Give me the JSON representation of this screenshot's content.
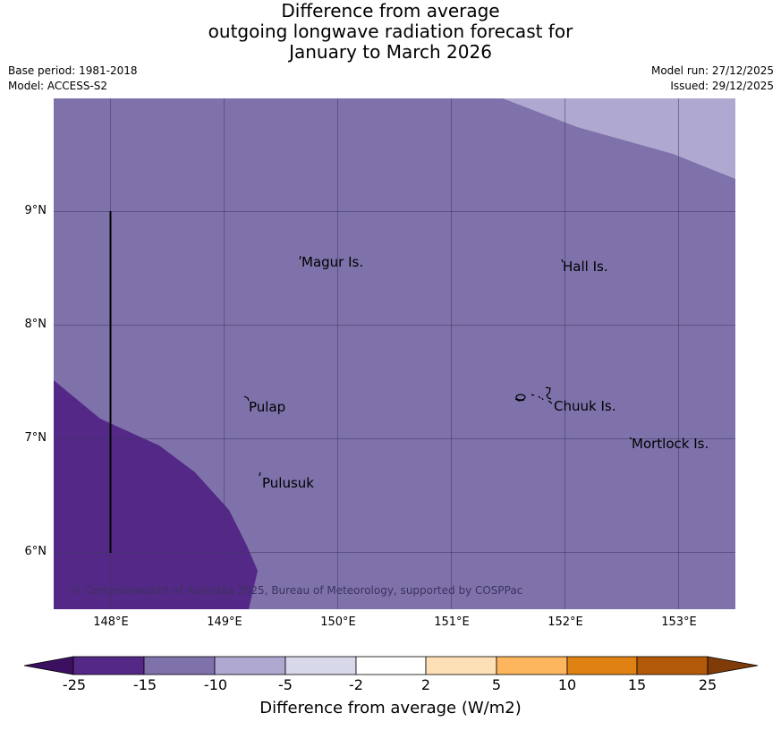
{
  "title": {
    "line1": "Difference from average",
    "line2": "outgoing longwave radiation forecast for",
    "line3": "January to March 2026"
  },
  "meta": {
    "base_period": "Base period: 1981-2018",
    "model": "Model: ACCESS-S2",
    "model_run": "Model run: 27/12/2025",
    "issued": "Issued: 29/12/2025"
  },
  "map": {
    "lon_range": [
      147.5,
      153.5
    ],
    "lat_range": [
      5.5,
      10.0
    ],
    "lat_labels": [
      "9°N",
      "8°N",
      "7°N",
      "6°N"
    ],
    "lon_labels": [
      "148°E",
      "149°E",
      "150°E",
      "151°E",
      "152°E",
      "153°E"
    ],
    "places": [
      {
        "name": "Magur Is.",
        "lon": 149.67,
        "lat": 8.55
      },
      {
        "name": "Hall Is.",
        "lon": 151.98,
        "lat": 8.55
      },
      {
        "name": "Pulap",
        "lon": 149.2,
        "lat": 7.3
      },
      {
        "name": "Chuuk Is.",
        "lon": 151.85,
        "lat": 7.35
      },
      {
        "name": "Mortlock Is.",
        "lon": 152.6,
        "lat": 7.0
      },
      {
        "name": "Pulusuk",
        "lon": 149.3,
        "lat": 6.65
      }
    ],
    "copyright": "© Commonwealth of Australia 2025, Bureau of Meteorology, supported by COSPPac",
    "colors": {
      "band_-15_-10": "#7f72ab",
      "band_-25_-15": "#542887",
      "band_-10_-5": "#afa8d0"
    }
  },
  "colorbar": {
    "labels": [
      "-25",
      "-15",
      "-10",
      "-5",
      "-2",
      "2",
      "5",
      "10",
      "15",
      "25"
    ],
    "colors": [
      "#3c0f60",
      "#542887",
      "#7f72ab",
      "#afa8d0",
      "#d8d8eb",
      "#ffffff",
      "#fee0b6",
      "#fdb55e",
      "#e08213",
      "#b25a09",
      "#7f3b08"
    ],
    "title": "Difference from average (W/m2)"
  }
}
